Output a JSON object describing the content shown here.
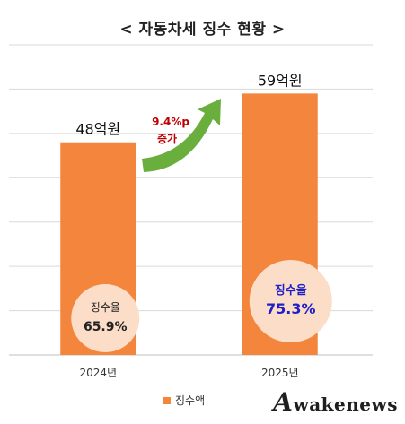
{
  "chart_data": {
    "type": "bar",
    "title": "< 자동차세 징수 현황 >",
    "categories": [
      "2024년",
      "2025년"
    ],
    "series": [
      {
        "name": "징수액",
        "values": [
          48,
          59
        ],
        "color": "#F4853D"
      }
    ],
    "value_labels": [
      "48억원",
      "59억원"
    ],
    "ylim": [
      0,
      70
    ],
    "grid": true,
    "legend_position": "bottom",
    "annotation": {
      "line1": "9.4%p",
      "line2": "증가",
      "arrow_color": "#6AAF3D",
      "text_color": "#C00000"
    },
    "collection_rate": [
      {
        "label": "징수율",
        "value": "65.9%",
        "text_color": "#222222"
      },
      {
        "label": "징수율",
        "value": "75.3%",
        "text_color": "#1F1FC8"
      }
    ],
    "circle_color": "#FBDDC8",
    "grid_color": "#D9D9D9"
  },
  "watermark": {
    "initial": "A",
    "rest": "wakenews"
  }
}
